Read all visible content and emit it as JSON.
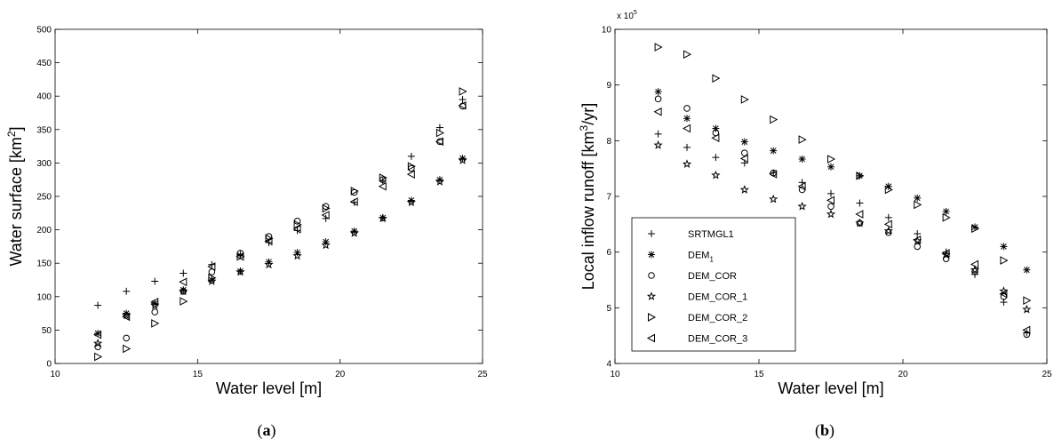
{
  "chart_data": [
    {
      "type": "scatter",
      "panel_label": "(a)",
      "panel_label_parts": {
        "open": "(",
        "letter": "a",
        "close": ")"
      },
      "xlabel": "Water level [m]",
      "ylabel_main": "Water surface [km",
      "ylabel_sup": "2",
      "ylabel_end": "]",
      "xlim": [
        10,
        25
      ],
      "ylim": [
        0,
        500
      ],
      "xticks": [
        10,
        15,
        20,
        25
      ],
      "yticks": [
        0,
        50,
        100,
        150,
        200,
        250,
        300,
        350,
        400,
        450,
        500
      ],
      "grid": false,
      "legend": false,
      "series": [
        {
          "marker": "plus",
          "x": [
            11.5,
            12.5,
            13.5,
            14.5,
            15.5,
            16.5,
            17.5,
            18.5,
            19.5,
            20.5,
            21.5,
            22.5,
            23.5,
            24.3
          ],
          "y": [
            87,
            108,
            123,
            135,
            148,
            163,
            181,
            199,
            217,
            241,
            273,
            310,
            353,
            395
          ]
        },
        {
          "marker": "asterisk",
          "x": [
            11.5,
            12.5,
            13.5,
            14.5,
            15.5,
            16.5,
            17.5,
            18.5,
            19.5,
            20.5,
            21.5,
            22.5,
            23.5,
            24.3
          ],
          "y": [
            45,
            75,
            90,
            110,
            125,
            138,
            152,
            166,
            182,
            198,
            218,
            244,
            275,
            307
          ]
        },
        {
          "marker": "circle",
          "x": [
            11.5,
            12.5,
            13.5,
            14.5,
            15.5,
            16.5,
            17.5,
            18.5,
            19.5,
            20.5,
            21.5,
            22.5,
            23.5,
            24.3
          ],
          "y": [
            25,
            38,
            77,
            108,
            137,
            165,
            190,
            213,
            235,
            256,
            275,
            292,
            332,
            385
          ]
        },
        {
          "marker": "star",
          "x": [
            11.5,
            12.5,
            13.5,
            14.5,
            15.5,
            16.5,
            17.5,
            18.5,
            19.5,
            20.5,
            21.5,
            22.5,
            23.5,
            24.3
          ],
          "y": [
            30,
            72,
            87,
            108,
            123,
            137,
            148,
            161,
            177,
            195,
            217,
            241,
            272,
            304
          ]
        },
        {
          "marker": "triangle-right",
          "x": [
            11.5,
            12.5,
            13.5,
            14.5,
            15.5,
            16.5,
            17.5,
            18.5,
            19.5,
            20.5,
            21.5,
            22.5,
            23.5,
            24.3
          ],
          "y": [
            10,
            22,
            60,
            93,
            128,
            160,
            187,
            208,
            232,
            258,
            278,
            295,
            345,
            407
          ]
        },
        {
          "marker": "triangle-left",
          "x": [
            11.5,
            12.5,
            13.5,
            14.5,
            15.5,
            16.5,
            17.5,
            18.5,
            19.5,
            20.5,
            21.5,
            22.5,
            23.5,
            24.3
          ],
          "y": [
            43,
            70,
            92,
            122,
            145,
            160,
            183,
            201,
            222,
            242,
            265,
            283,
            332,
            386
          ]
        }
      ]
    },
    {
      "type": "scatter",
      "panel_label": "(b)",
      "panel_label_parts": {
        "open": "(",
        "letter": "b",
        "close": ")"
      },
      "xlabel": "Water level [m]",
      "ylabel_main": "Local inflow runoff [km",
      "ylabel_sup": "3",
      "ylabel_end": "/yr]",
      "yscale_base": "x 10",
      "yscale_exp": "5",
      "xlim": [
        10,
        25
      ],
      "ylim": [
        4,
        10
      ],
      "xticks": [
        10,
        15,
        20,
        25
      ],
      "yticks": [
        4,
        5,
        6,
        7,
        8,
        9,
        10
      ],
      "grid": false,
      "legend": true,
      "legend_position": "lower-left",
      "series": [
        {
          "name": "SRTMGL1",
          "marker": "plus",
          "x": [
            11.5,
            12.5,
            13.5,
            14.5,
            15.5,
            16.5,
            17.5,
            18.5,
            19.5,
            20.5,
            21.5,
            22.5,
            23.5,
            24.3
          ],
          "y": [
            8.12,
            7.88,
            7.7,
            7.6,
            7.42,
            7.25,
            7.05,
            6.88,
            6.62,
            6.33,
            6.0,
            5.6,
            5.1,
            4.55
          ]
        },
        {
          "name": "DEM",
          "name_sub": "1",
          "marker": "asterisk",
          "x": [
            11.5,
            12.5,
            13.5,
            14.5,
            15.5,
            16.5,
            17.5,
            18.5,
            19.5,
            20.5,
            21.5,
            22.5,
            23.5,
            24.3
          ],
          "y": [
            8.88,
            8.4,
            8.22,
            7.98,
            7.82,
            7.67,
            7.53,
            7.37,
            7.18,
            6.97,
            6.73,
            6.45,
            6.1,
            5.68
          ]
        },
        {
          "name": "DEM_COR",
          "marker": "circle",
          "x": [
            11.5,
            12.5,
            13.5,
            14.5,
            15.5,
            16.5,
            17.5,
            18.5,
            19.5,
            20.5,
            21.5,
            22.5,
            23.5,
            24.3
          ],
          "y": [
            8.75,
            8.58,
            8.14,
            7.78,
            7.42,
            7.12,
            6.82,
            6.52,
            6.35,
            6.1,
            5.88,
            5.65,
            5.2,
            4.52
          ]
        },
        {
          "name": "DEM_COR_1",
          "marker": "star",
          "x": [
            11.5,
            12.5,
            13.5,
            14.5,
            15.5,
            16.5,
            17.5,
            18.5,
            19.5,
            20.5,
            21.5,
            22.5,
            23.5,
            24.3
          ],
          "y": [
            7.92,
            7.58,
            7.38,
            7.12,
            6.95,
            6.82,
            6.68,
            6.52,
            6.38,
            6.2,
            5.95,
            5.68,
            5.3,
            4.97
          ]
        },
        {
          "name": "DEM_COR_2",
          "marker": "triangle-right",
          "x": [
            11.5,
            12.5,
            13.5,
            14.5,
            15.5,
            16.5,
            17.5,
            18.5,
            19.5,
            20.5,
            21.5,
            22.5,
            23.5,
            24.3
          ],
          "y": [
            9.68,
            9.55,
            9.12,
            8.74,
            8.38,
            8.02,
            7.67,
            7.37,
            7.12,
            6.85,
            6.62,
            6.42,
            5.85,
            5.13
          ]
        },
        {
          "name": "DEM_COR_3",
          "marker": "triangle-left",
          "x": [
            11.5,
            12.5,
            13.5,
            14.5,
            15.5,
            16.5,
            17.5,
            18.5,
            19.5,
            20.5,
            21.5,
            22.5,
            23.5,
            24.3
          ],
          "y": [
            8.52,
            8.22,
            8.05,
            7.68,
            7.4,
            7.18,
            6.93,
            6.68,
            6.5,
            6.22,
            5.98,
            5.78,
            5.25,
            4.6
          ]
        }
      ]
    }
  ]
}
